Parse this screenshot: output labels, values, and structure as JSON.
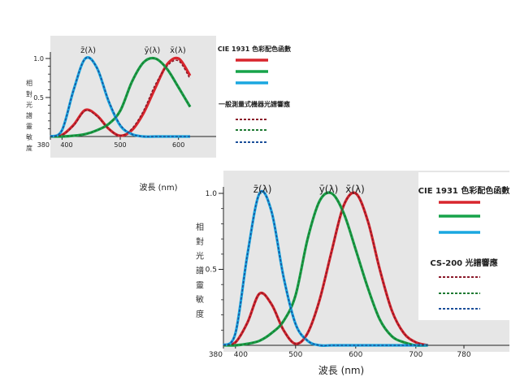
{
  "chart_data": [
    {
      "type": "line",
      "title": "",
      "xlabel": "波長 (nm)",
      "ylabel": "相對光譜靈敏度",
      "xlim": [
        380,
        620
      ],
      "ylim": [
        0,
        1.05
      ],
      "xticks": [
        380,
        400,
        500,
        600
      ],
      "yticks": [
        0.5,
        1.0
      ],
      "ytick_labels": [
        "0.5",
        "1.0"
      ],
      "curve_labels": [
        {
          "text": "z̄(λ)",
          "x": 445
        },
        {
          "text": "ȳ(λ)",
          "x": 555
        },
        {
          "text": "x̄(λ)",
          "x": 599
        }
      ],
      "legend": {
        "position": "right",
        "group1_title": "CIE 1931 色彩配色函數",
        "group2_title": "一般測量式機器光譜響應",
        "solid_colors": [
          "#d8262d",
          "#17a34a",
          "#1aa7e0"
        ],
        "dashed_colors": [
          "#8b1a2a",
          "#1f7a33",
          "#1b4f9a"
        ]
      },
      "series": [
        {
          "color": "#d8262d",
          "dashed": false,
          "x": [
            380,
            400,
            420,
            440,
            460,
            480,
            500,
            520,
            540,
            560,
            580,
            600,
            620
          ],
          "values": [
            0.0,
            0.02,
            0.15,
            0.34,
            0.27,
            0.1,
            0.01,
            0.08,
            0.3,
            0.62,
            0.92,
            1.0,
            0.78
          ]
        },
        {
          "color": "#17a34a",
          "dashed": false,
          "x": [
            380,
            400,
            420,
            440,
            460,
            480,
            500,
            520,
            540,
            560,
            580,
            600,
            620
          ],
          "values": [
            0.0,
            0.0,
            0.01,
            0.03,
            0.08,
            0.16,
            0.33,
            0.7,
            0.95,
            1.0,
            0.87,
            0.63,
            0.38
          ]
        },
        {
          "color": "#1aa7e0",
          "dashed": false,
          "x": [
            380,
            400,
            420,
            440,
            460,
            480,
            500,
            520,
            540,
            560,
            580,
            600,
            620
          ],
          "values": [
            0.0,
            0.08,
            0.6,
            1.0,
            0.88,
            0.45,
            0.14,
            0.03,
            0.0,
            0.0,
            0.0,
            0.0,
            0.0
          ]
        },
        {
          "color": "#8b1a2a",
          "dashed": true,
          "x": [
            380,
            400,
            420,
            440,
            460,
            480,
            500,
            520,
            540,
            560,
            580,
            600,
            620
          ],
          "values": [
            0.0,
            0.02,
            0.14,
            0.33,
            0.26,
            0.1,
            0.01,
            0.1,
            0.33,
            0.66,
            0.9,
            0.97,
            0.74
          ]
        },
        {
          "color": "#1f7a33",
          "dashed": true,
          "x": [
            380,
            400,
            420,
            440,
            460,
            480,
            500,
            520,
            540,
            560,
            580,
            600,
            620
          ],
          "values": [
            0.0,
            0.0,
            0.01,
            0.03,
            0.08,
            0.16,
            0.33,
            0.7,
            0.95,
            1.0,
            0.87,
            0.63,
            0.38
          ]
        },
        {
          "color": "#1b4f9a",
          "dashed": true,
          "x": [
            380,
            400,
            420,
            440,
            460,
            480,
            500,
            520,
            540,
            560,
            580,
            600,
            620
          ],
          "values": [
            0.0,
            0.08,
            0.6,
            1.0,
            0.88,
            0.46,
            0.15,
            0.03,
            0.0,
            0.0,
            0.0,
            0.0,
            0.0
          ]
        }
      ]
    },
    {
      "type": "line",
      "title": "",
      "xlabel": "波長 (nm)",
      "ylabel": "相對光譜靈敏度",
      "xlim": [
        380,
        780
      ],
      "ylim": [
        0,
        1.05
      ],
      "xticks": [
        380,
        400,
        500,
        600,
        700,
        780
      ],
      "yticks": [
        0.5,
        1.0
      ],
      "ytick_labels": [
        "0.5",
        "1.0"
      ],
      "curve_labels": [
        {
          "text": "z̄(λ)",
          "x": 445
        },
        {
          "text": "ȳ(λ)",
          "x": 555
        },
        {
          "text": "x̄(λ)",
          "x": 599
        }
      ],
      "legend": {
        "position": "right",
        "group1_title": "CIE 1931 色彩配色函數",
        "group2_title": "CS-200 光譜響應",
        "solid_colors": [
          "#d8262d",
          "#17a34a",
          "#1aa7e0"
        ],
        "dashed_colors": [
          "#8b1a2a",
          "#1f7a33",
          "#1b4f9a"
        ]
      },
      "series": [
        {
          "color": "#d8262d",
          "dashed": false,
          "x": [
            380,
            400,
            420,
            440,
            460,
            480,
            500,
            520,
            540,
            560,
            580,
            600,
            620,
            640,
            660,
            680,
            700,
            720
          ],
          "values": [
            0.0,
            0.02,
            0.15,
            0.34,
            0.27,
            0.1,
            0.01,
            0.08,
            0.3,
            0.62,
            0.92,
            1.0,
            0.82,
            0.5,
            0.23,
            0.08,
            0.02,
            0.0
          ]
        },
        {
          "color": "#17a34a",
          "dashed": false,
          "x": [
            380,
            400,
            420,
            440,
            460,
            480,
            500,
            520,
            540,
            560,
            580,
            600,
            620,
            640,
            660,
            680,
            700,
            720
          ],
          "values": [
            0.0,
            0.0,
            0.01,
            0.03,
            0.08,
            0.16,
            0.33,
            0.7,
            0.95,
            1.0,
            0.87,
            0.63,
            0.38,
            0.17,
            0.06,
            0.02,
            0.0,
            0.0
          ]
        },
        {
          "color": "#1aa7e0",
          "dashed": false,
          "x": [
            380,
            400,
            420,
            440,
            460,
            480,
            500,
            520,
            540,
            560,
            580,
            600,
            620,
            640,
            660,
            680,
            700,
            720
          ],
          "values": [
            0.0,
            0.08,
            0.6,
            1.0,
            0.88,
            0.45,
            0.14,
            0.03,
            0.0,
            0.0,
            0.0,
            0.0,
            0.0,
            0.0,
            0.0,
            0.0,
            0.0,
            0.0
          ]
        },
        {
          "color": "#8b1a2a",
          "dashed": true,
          "x": [
            380,
            400,
            420,
            440,
            460,
            480,
            500,
            520,
            540,
            560,
            580,
            600,
            620,
            640,
            660,
            680,
            700,
            720
          ],
          "values": [
            0.0,
            0.02,
            0.15,
            0.34,
            0.27,
            0.1,
            0.01,
            0.08,
            0.3,
            0.62,
            0.92,
            1.0,
            0.82,
            0.5,
            0.23,
            0.08,
            0.02,
            0.0
          ]
        },
        {
          "color": "#1f7a33",
          "dashed": true,
          "x": [
            380,
            400,
            420,
            440,
            460,
            480,
            500,
            520,
            540,
            560,
            580,
            600,
            620,
            640,
            660,
            680,
            700,
            720
          ],
          "values": [
            0.0,
            0.0,
            0.01,
            0.03,
            0.08,
            0.16,
            0.33,
            0.7,
            0.95,
            1.0,
            0.87,
            0.63,
            0.38,
            0.17,
            0.06,
            0.02,
            0.0,
            0.0
          ]
        },
        {
          "color": "#1b4f9a",
          "dashed": true,
          "x": [
            380,
            400,
            420,
            440,
            460,
            480,
            500,
            520,
            540,
            560,
            580,
            600,
            620,
            640,
            660,
            680,
            700,
            720
          ],
          "values": [
            0.0,
            0.08,
            0.6,
            1.0,
            0.88,
            0.45,
            0.14,
            0.03,
            0.0,
            0.0,
            0.0,
            0.0,
            0.0,
            0.0,
            0.0,
            0.0,
            0.0,
            0.0
          ]
        }
      ]
    }
  ]
}
